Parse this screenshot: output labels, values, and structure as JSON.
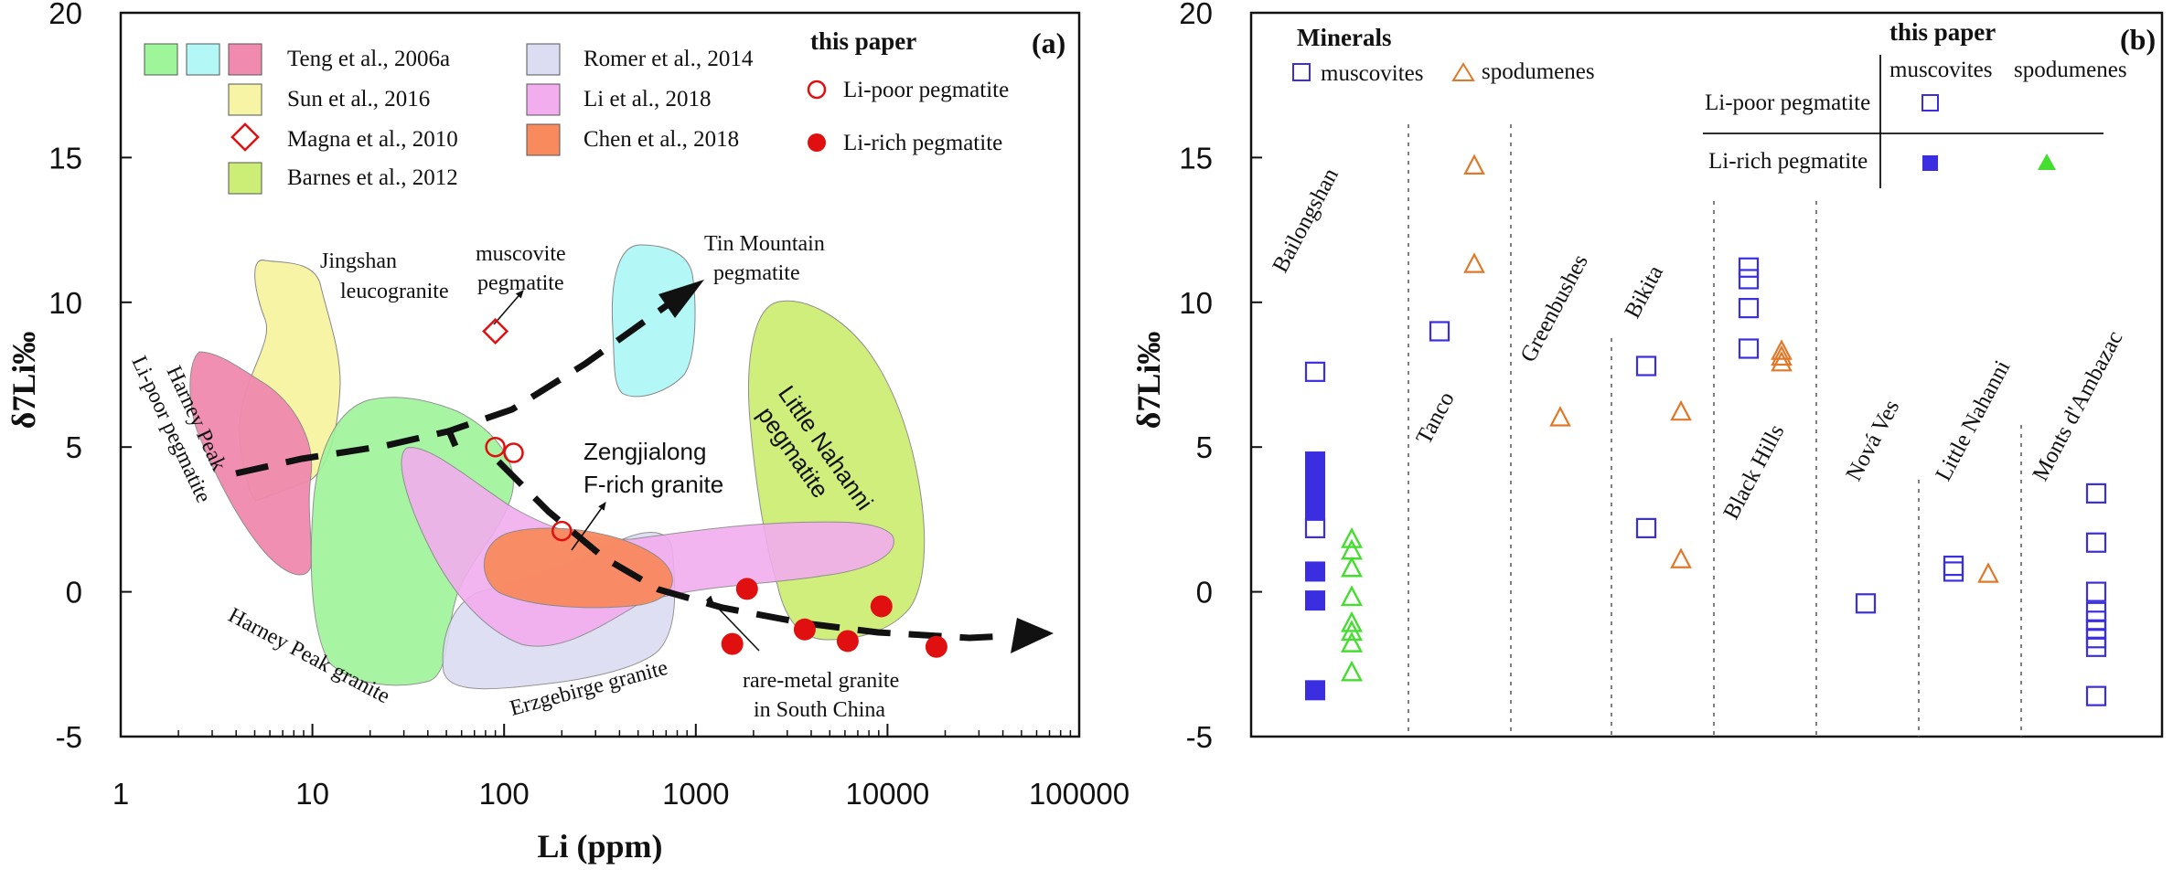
{
  "colors": {
    "teng": "#9ef59a",
    "teng_cyan": "#b3f7f7",
    "teng_pink": "#f08aae",
    "sun": "#f7f4a6",
    "barnes": "#cdee76",
    "romer": "#dcdcf2",
    "li": "#f2adee",
    "chen": "#f98a5e",
    "red": "#e01010",
    "blue": "#3a2ee0",
    "orange": "#e0782a",
    "green": "#44dd30"
  },
  "chart_data": [
    {
      "panel": "(a)",
      "type": "scatter",
      "xlabel": "Li (ppm)",
      "ylabel": "δ7Li‰",
      "xscale": "log",
      "xlim": [
        1,
        100000
      ],
      "ylim": [
        -5,
        20
      ],
      "x_ticks": [
        "1",
        "10",
        "100",
        "1000",
        "10000",
        "100000"
      ],
      "y_ticks": [
        "-5",
        "0",
        "5",
        "10",
        "15",
        "20"
      ],
      "legend": {
        "items": [
          "Teng et al., 2006a",
          "Sun et al., 2016",
          "Magna et al., 2010",
          "Barnes et al., 2012",
          "Romer et al., 2014",
          "Li et al., 2018",
          "Chen et al., 2018"
        ],
        "this_paper_title": "this paper",
        "this_paper_items": [
          "Li-poor pegmatite",
          "Li-rich pegmatite"
        ]
      },
      "series": [
        {
          "name": "Magna et al., 2010",
          "marker": "open-diamond",
          "points": [
            [
              90,
              9.0
            ]
          ]
        },
        {
          "name": "Li-poor pegmatite",
          "marker": "open-circle",
          "points": [
            [
              90,
              5.0
            ],
            [
              112,
              4.8
            ],
            [
              200,
              2.1
            ]
          ]
        },
        {
          "name": "Li-rich pegmatite",
          "marker": "filled-circle",
          "points": [
            [
              1550,
              -1.8
            ],
            [
              1850,
              0.1
            ],
            [
              3700,
              -1.3
            ],
            [
              6200,
              -1.7
            ],
            [
              9300,
              -0.5
            ],
            [
              18000,
              -1.9
            ]
          ]
        }
      ],
      "annotations": [
        "Jingshan leucogranite",
        "muscovite pegmatite",
        "Tin Mountain pegmatite",
        "Harney Peak Li-poor pegmatite",
        "Zengjialong F-rich granite",
        "Little Nahanni pegmatite",
        "Harney Peak granite",
        "Erzgebirge granite",
        "rare-metal granite in South China"
      ]
    },
    {
      "panel": "(b)",
      "type": "scatter",
      "ylabel": "δ7Li‰",
      "ylim": [
        -5,
        20
      ],
      "y_ticks": [
        "-5",
        "0",
        "5",
        "10",
        "15",
        "20"
      ],
      "legend": {
        "minerals_title": "Minerals",
        "minerals_items": [
          "muscovites",
          "spodumenes"
        ],
        "this_paper_title": "this paper",
        "columns": [
          "muscovites",
          "spodumenes"
        ],
        "rows": [
          "Li-poor pegmatite",
          "Li-rich pegmatite"
        ]
      },
      "categories": [
        "Bailongshan",
        "Tanco",
        "Greenbushes",
        "Bikita",
        "Black Hills",
        "Nová Ves",
        "Little Nahanni",
        "Monts d'Ambazac"
      ],
      "series": [
        {
          "name": "muscovites",
          "marker": "open-square",
          "points": [
            [
              "Bailongshan",
              7.6
            ],
            [
              "Bailongshan",
              2.2
            ],
            [
              "Tanco",
              9.0
            ],
            [
              "Bikita",
              7.8
            ],
            [
              "Bikita",
              2.2
            ],
            [
              "Black Hills",
              11.2
            ],
            [
              "Black Hills",
              10.8
            ],
            [
              "Black Hills",
              9.8
            ],
            [
              "Black Hills",
              8.4
            ],
            [
              "Nová Ves",
              -0.4
            ],
            [
              "Little Nahanni",
              0.9
            ],
            [
              "Little Nahanni",
              0.7
            ],
            [
              "Monts d'Ambazac",
              3.4
            ],
            [
              "Monts d'Ambazac",
              1.7
            ],
            [
              "Monts d'Ambazac",
              0.0
            ],
            [
              "Monts d'Ambazac",
              -0.7
            ],
            [
              "Monts d'Ambazac",
              -1.0
            ],
            [
              "Monts d'Ambazac",
              -1.3
            ],
            [
              "Monts d'Ambazac",
              -1.6
            ],
            [
              "Monts d'Ambazac",
              -1.9
            ],
            [
              "Monts d'Ambazac",
              -3.6
            ]
          ]
        },
        {
          "name": "spodumenes",
          "marker": "open-triangle",
          "points": [
            [
              "Tanco",
              14.7
            ],
            [
              "Tanco",
              11.3
            ],
            [
              "Greenbushes",
              6.0
            ],
            [
              "Bikita",
              6.2
            ],
            [
              "Bikita",
              1.1
            ],
            [
              "Black Hills",
              8.3
            ],
            [
              "Black Hills",
              8.1
            ],
            [
              "Black Hills",
              7.9
            ],
            [
              "Little Nahanni",
              0.6
            ]
          ]
        },
        {
          "name": "Li-rich pegmatite muscovites",
          "marker": "filled-square",
          "points": [
            [
              "Bailongshan",
              4.5
            ],
            [
              "Bailongshan",
              4.1
            ],
            [
              "Bailongshan",
              3.6
            ],
            [
              "Bailongshan",
              3.2
            ],
            [
              "Bailongshan",
              2.8
            ],
            [
              "Bailongshan",
              0.7
            ],
            [
              "Bailongshan",
              -0.3
            ],
            [
              "Bailongshan",
              -3.4
            ]
          ]
        },
        {
          "name": "Li-rich pegmatite spodumenes",
          "marker": "filled-triangle",
          "points": [
            [
              "Bailongshan",
              1.8
            ],
            [
              "Bailongshan",
              1.4
            ],
            [
              "Bailongshan",
              0.8
            ],
            [
              "Bailongshan",
              -0.2
            ],
            [
              "Bailongshan",
              -1.1
            ],
            [
              "Bailongshan",
              -1.4
            ],
            [
              "Bailongshan",
              -1.8
            ],
            [
              "Bailongshan",
              -2.8
            ]
          ]
        }
      ]
    }
  ]
}
